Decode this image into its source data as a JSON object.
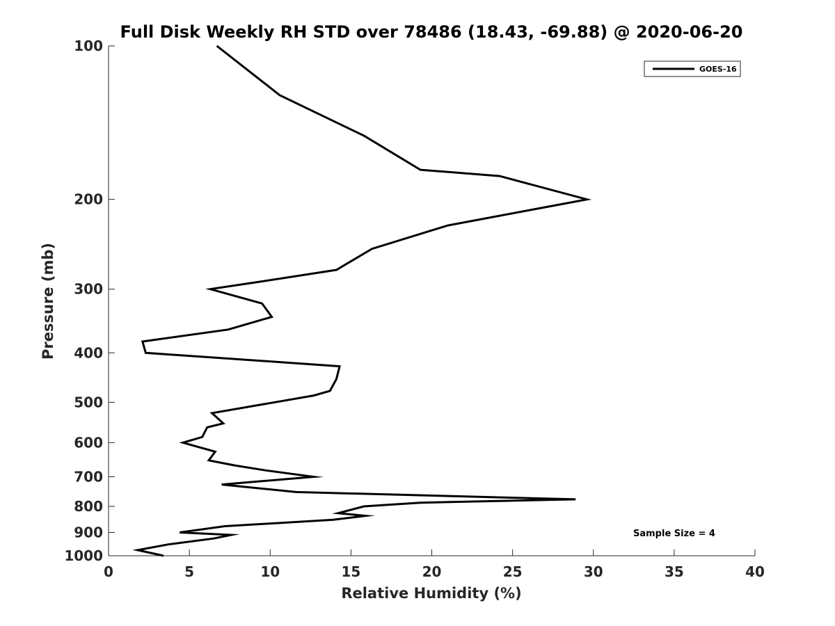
{
  "chart_data": {
    "type": "line",
    "title": "Full Disk Weekly RH STD over 78486 (18.43, -69.88) @ 2020-06-20",
    "xlabel": "Relative Humidity (%)",
    "ylabel": "Pressure (mb)",
    "xlim": [
      0,
      40
    ],
    "ylim": [
      100,
      1000
    ],
    "y_scale": "log",
    "y_reversed": true,
    "x_ticks": [
      0,
      5,
      10,
      15,
      20,
      25,
      30,
      35,
      40
    ],
    "x_tick_labels": [
      "0",
      "5",
      "10",
      "15",
      "20",
      "25",
      "30",
      "35",
      "40"
    ],
    "y_ticks": [
      100,
      200,
      300,
      400,
      500,
      600,
      700,
      800,
      900,
      1000
    ],
    "y_tick_labels": [
      "100",
      "200",
      "300",
      "400",
      "500",
      "600",
      "700",
      "800",
      "900",
      "1000"
    ],
    "grid": false,
    "legend_position": "top-right",
    "annotation": "Sample Size = 4",
    "series": [
      {
        "name": "GOES-16",
        "color": "#000000",
        "points": [
          [
            6.7,
            100
          ],
          [
            10.6,
            125
          ],
          [
            15.8,
            150
          ],
          [
            19.3,
            175
          ],
          [
            24.2,
            180
          ],
          [
            29.6,
            200
          ],
          [
            21.0,
            225
          ],
          [
            16.3,
            250
          ],
          [
            14.1,
            275
          ],
          [
            9.4,
            290
          ],
          [
            6.3,
            300
          ],
          [
            9.5,
            320
          ],
          [
            10.1,
            340
          ],
          [
            7.4,
            360
          ],
          [
            2.1,
            380
          ],
          [
            2.3,
            400
          ],
          [
            14.3,
            425
          ],
          [
            14.1,
            450
          ],
          [
            13.7,
            475
          ],
          [
            12.7,
            485
          ],
          [
            10.3,
            500
          ],
          [
            6.4,
            525
          ],
          [
            7.1,
            550
          ],
          [
            6.1,
            560
          ],
          [
            5.8,
            585
          ],
          [
            4.6,
            600
          ],
          [
            6.6,
            625
          ],
          [
            6.2,
            650
          ],
          [
            7.8,
            665
          ],
          [
            9.7,
            680
          ],
          [
            12.7,
            700
          ],
          [
            7.0,
            725
          ],
          [
            11.6,
            750
          ],
          [
            28.9,
            775
          ],
          [
            19.3,
            787
          ],
          [
            15.8,
            800
          ],
          [
            14.2,
            825
          ],
          [
            15.9,
            835
          ],
          [
            13.9,
            850
          ],
          [
            7.2,
            875
          ],
          [
            4.4,
            900
          ],
          [
            7.6,
            910
          ],
          [
            6.5,
            925
          ],
          [
            3.7,
            950
          ],
          [
            1.8,
            975
          ],
          [
            3.4,
            1000
          ]
        ]
      }
    ]
  }
}
